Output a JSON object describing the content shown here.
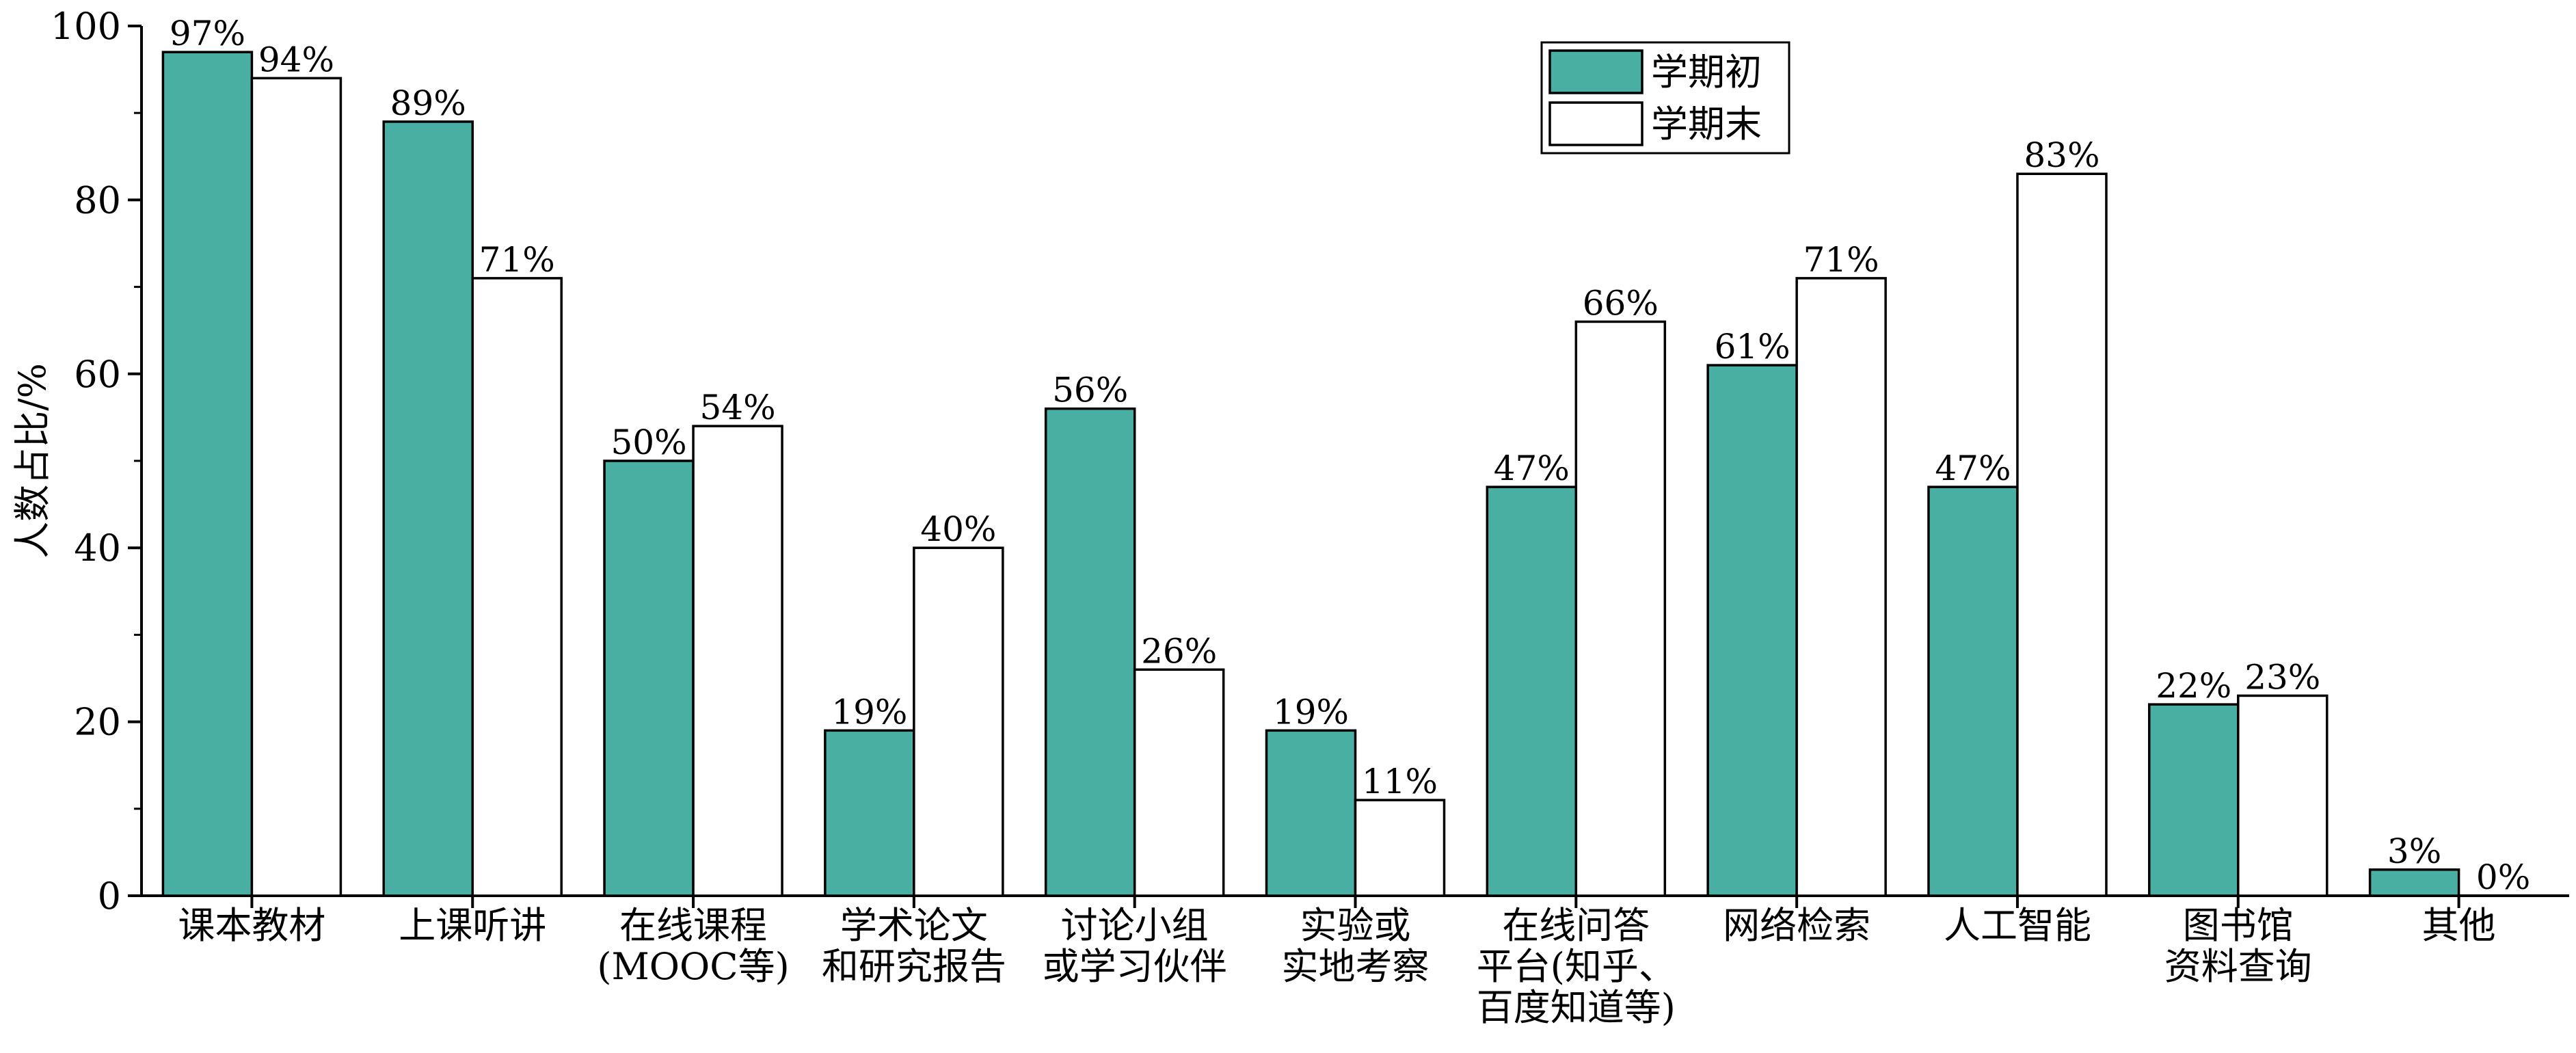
{
  "chart_data": {
    "type": "bar",
    "ylabel": "人数占比/%",
    "ylim": [
      0,
      100
    ],
    "yticks": [
      0,
      20,
      40,
      60,
      80,
      100
    ],
    "categories": [
      [
        "课本教材"
      ],
      [
        "上课听讲"
      ],
      [
        "在线课程",
        "(MOOC等)"
      ],
      [
        "学术论文",
        "和研究报告"
      ],
      [
        "讨论小组",
        "或学习伙伴"
      ],
      [
        "实验或",
        "实地考察"
      ],
      [
        "在线问答",
        "平台(知乎、",
        "百度知道等)"
      ],
      [
        "网络检索"
      ],
      [
        "人工智能"
      ],
      [
        "图书馆",
        "资料查询"
      ],
      [
        "其他"
      ]
    ],
    "series": [
      {
        "name": "学期初",
        "color": "#4aafa3",
        "values": [
          97,
          89,
          50,
          19,
          56,
          19,
          47,
          61,
          47,
          22,
          3
        ],
        "labels": [
          "97%",
          "89%",
          "50%",
          "19%",
          "56%",
          "19%",
          "47%",
          "61%",
          "47%",
          "22%",
          "3%"
        ]
      },
      {
        "name": "学期末",
        "color": "#ffffff",
        "values": [
          94,
          71,
          54,
          40,
          26,
          11,
          66,
          71,
          83,
          23,
          0
        ],
        "labels": [
          "94%",
          "71%",
          "54%",
          "40%",
          "26%",
          "11%",
          "66%",
          "71%",
          "83%",
          "23%",
          "0%"
        ]
      }
    ],
    "legend": {
      "placement": "top-center"
    },
    "grid": false
  }
}
